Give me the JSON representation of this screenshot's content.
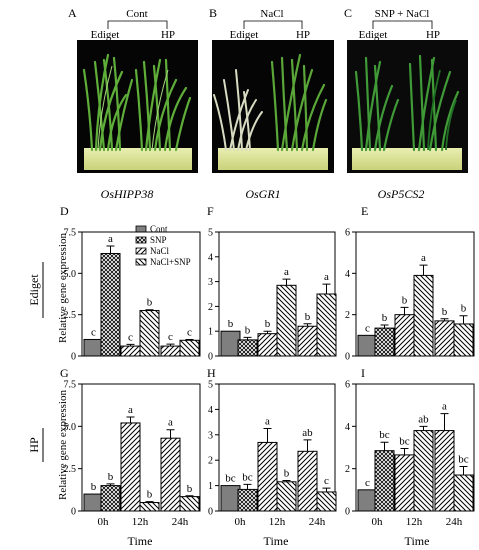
{
  "photos": [
    {
      "letter": "A",
      "treatment": "Cont",
      "left": "Ediget",
      "right": "HP"
    },
    {
      "letter": "B",
      "treatment": "NaCl",
      "left": "Ediget",
      "right": "HP"
    },
    {
      "letter": "C",
      "treatment": "SNP + NaCl",
      "left": "Ediget",
      "right": "HP"
    }
  ],
  "gene_titles": [
    "OsHIPP38",
    "OsGR1",
    "OsP5CS2"
  ],
  "row_labels": [
    "Ediget",
    "HP"
  ],
  "ylabel": "Relative gene expression",
  "xlabel": "Time",
  "time_labels": [
    "0h",
    "12h",
    "24h"
  ],
  "legend": [
    "Cont",
    "SNP",
    "NaCl",
    "NaCl+SNP"
  ],
  "colors": {
    "cont": "#7f7f7f",
    "border": "#000000"
  },
  "chart_data": [
    {
      "type": "bar",
      "panel": "D",
      "gene": "OsHIPP38",
      "cultivar": "Ediget",
      "ylim": [
        0,
        7.5
      ],
      "ticks": [
        "0",
        "2.5",
        "5.0",
        "7.5"
      ],
      "bars": [
        {
          "series": "Cont",
          "time": "0h",
          "value": 1.0,
          "error": 0,
          "letter": "c"
        },
        {
          "series": "SNP",
          "time": "0h",
          "value": 6.2,
          "error": 0.45,
          "letter": "a"
        },
        {
          "series": "NaCl",
          "time": "12h",
          "value": 0.6,
          "error": 0.1,
          "letter": "c"
        },
        {
          "series": "NaCl+SNP",
          "time": "12h",
          "value": 2.75,
          "error": 0.05,
          "letter": "b"
        },
        {
          "series": "NaCl",
          "time": "24h",
          "value": 0.6,
          "error": 0.12,
          "letter": "c"
        },
        {
          "series": "NaCl+SNP",
          "time": "24h",
          "value": 0.95,
          "error": 0.05,
          "letter": "c"
        }
      ]
    },
    {
      "type": "bar",
      "panel": "F",
      "gene": "OsGR1",
      "cultivar": "Ediget",
      "ylim": [
        0,
        5
      ],
      "ticks": [
        "0",
        "1",
        "2",
        "3",
        "4",
        "5"
      ],
      "bars": [
        {
          "series": "Cont",
          "time": "0h",
          "value": 1.0,
          "error": 0,
          "letter": "b"
        },
        {
          "series": "SNP",
          "time": "0h",
          "value": 0.65,
          "error": 0.1,
          "letter": "b"
        },
        {
          "series": "NaCl",
          "time": "12h",
          "value": 0.9,
          "error": 0.1,
          "letter": "b"
        },
        {
          "series": "NaCl+SNP",
          "time": "12h",
          "value": 2.85,
          "error": 0.25,
          "letter": "a"
        },
        {
          "series": "NaCl",
          "time": "24h",
          "value": 1.2,
          "error": 0.1,
          "letter": "b"
        },
        {
          "series": "NaCl+SNP",
          "time": "24h",
          "value": 2.5,
          "error": 0.4,
          "letter": "a"
        }
      ]
    },
    {
      "type": "bar",
      "panel": "E",
      "gene": "OsP5CS2",
      "cultivar": "Ediget",
      "ylim": [
        0,
        6
      ],
      "ticks": [
        "0",
        "2",
        "4",
        "6"
      ],
      "bars": [
        {
          "series": "Cont",
          "time": "0h",
          "value": 1.0,
          "error": 0,
          "letter": "c"
        },
        {
          "series": "SNP",
          "time": "0h",
          "value": 1.35,
          "error": 0.15,
          "letter": "b"
        },
        {
          "series": "NaCl",
          "time": "12h",
          "value": 2.0,
          "error": 0.35,
          "letter": "b"
        },
        {
          "series": "NaCl+SNP",
          "time": "12h",
          "value": 3.9,
          "error": 0.5,
          "letter": "a"
        },
        {
          "series": "NaCl",
          "time": "24h",
          "value": 1.7,
          "error": 0.1,
          "letter": "b"
        },
        {
          "series": "NaCl+SNP",
          "time": "24h",
          "value": 1.55,
          "error": 0.4,
          "letter": "b"
        }
      ]
    },
    {
      "type": "bar",
      "panel": "G",
      "gene": "OsHIPP38",
      "cultivar": "HP",
      "ylim": [
        0,
        7.5
      ],
      "ticks": [
        "0",
        "2.5",
        "5.0",
        "7.5"
      ],
      "bars": [
        {
          "series": "Cont",
          "time": "0h",
          "value": 1.0,
          "error": 0,
          "letter": "b"
        },
        {
          "series": "SNP",
          "time": "0h",
          "value": 1.5,
          "error": 0.1,
          "letter": "b"
        },
        {
          "series": "NaCl",
          "time": "12h",
          "value": 5.2,
          "error": 0.35,
          "letter": "a"
        },
        {
          "series": "NaCl+SNP",
          "time": "12h",
          "value": 0.5,
          "error": 0.05,
          "letter": "b"
        },
        {
          "series": "NaCl",
          "time": "24h",
          "value": 4.3,
          "error": 0.5,
          "letter": "a"
        },
        {
          "series": "NaCl+SNP",
          "time": "24h",
          "value": 0.85,
          "error": 0.05,
          "letter": "b"
        }
      ]
    },
    {
      "type": "bar",
      "panel": "H",
      "gene": "OsGR1",
      "cultivar": "HP",
      "ylim": [
        0,
        5
      ],
      "ticks": [
        "0",
        "1",
        "2",
        "3",
        "4",
        "5"
      ],
      "bars": [
        {
          "series": "Cont",
          "time": "0h",
          "value": 1.0,
          "error": 0,
          "letter": "bc"
        },
        {
          "series": "SNP",
          "time": "0h",
          "value": 0.85,
          "error": 0.2,
          "letter": "bc"
        },
        {
          "series": "NaCl",
          "time": "12h",
          "value": 2.7,
          "error": 0.55,
          "letter": "a"
        },
        {
          "series": "NaCl+SNP",
          "time": "12h",
          "value": 1.15,
          "error": 0.05,
          "letter": "b"
        },
        {
          "series": "NaCl",
          "time": "24h",
          "value": 2.35,
          "error": 0.45,
          "letter": "ab"
        },
        {
          "series": "NaCl+SNP",
          "time": "24h",
          "value": 0.75,
          "error": 0.15,
          "letter": "c"
        }
      ]
    },
    {
      "type": "bar",
      "panel": "I",
      "gene": "OsP5CS2",
      "cultivar": "HP",
      "ylim": [
        0,
        6
      ],
      "ticks": [
        "0",
        "2",
        "4",
        "6"
      ],
      "bars": [
        {
          "series": "Cont",
          "time": "0h",
          "value": 1.0,
          "error": 0,
          "letter": "c"
        },
        {
          "series": "SNP",
          "time": "0h",
          "value": 2.85,
          "error": 0.4,
          "letter": "bc"
        },
        {
          "series": "NaCl",
          "time": "12h",
          "value": 2.65,
          "error": 0.3,
          "letter": "bc"
        },
        {
          "series": "NaCl+SNP",
          "time": "12h",
          "value": 3.8,
          "error": 0.2,
          "letter": "ab"
        },
        {
          "series": "NaCl",
          "time": "24h",
          "value": 3.8,
          "error": 0.8,
          "letter": "a"
        },
        {
          "series": "NaCl+SNP",
          "time": "24h",
          "value": 1.7,
          "error": 0.4,
          "letter": "bc"
        }
      ]
    }
  ]
}
